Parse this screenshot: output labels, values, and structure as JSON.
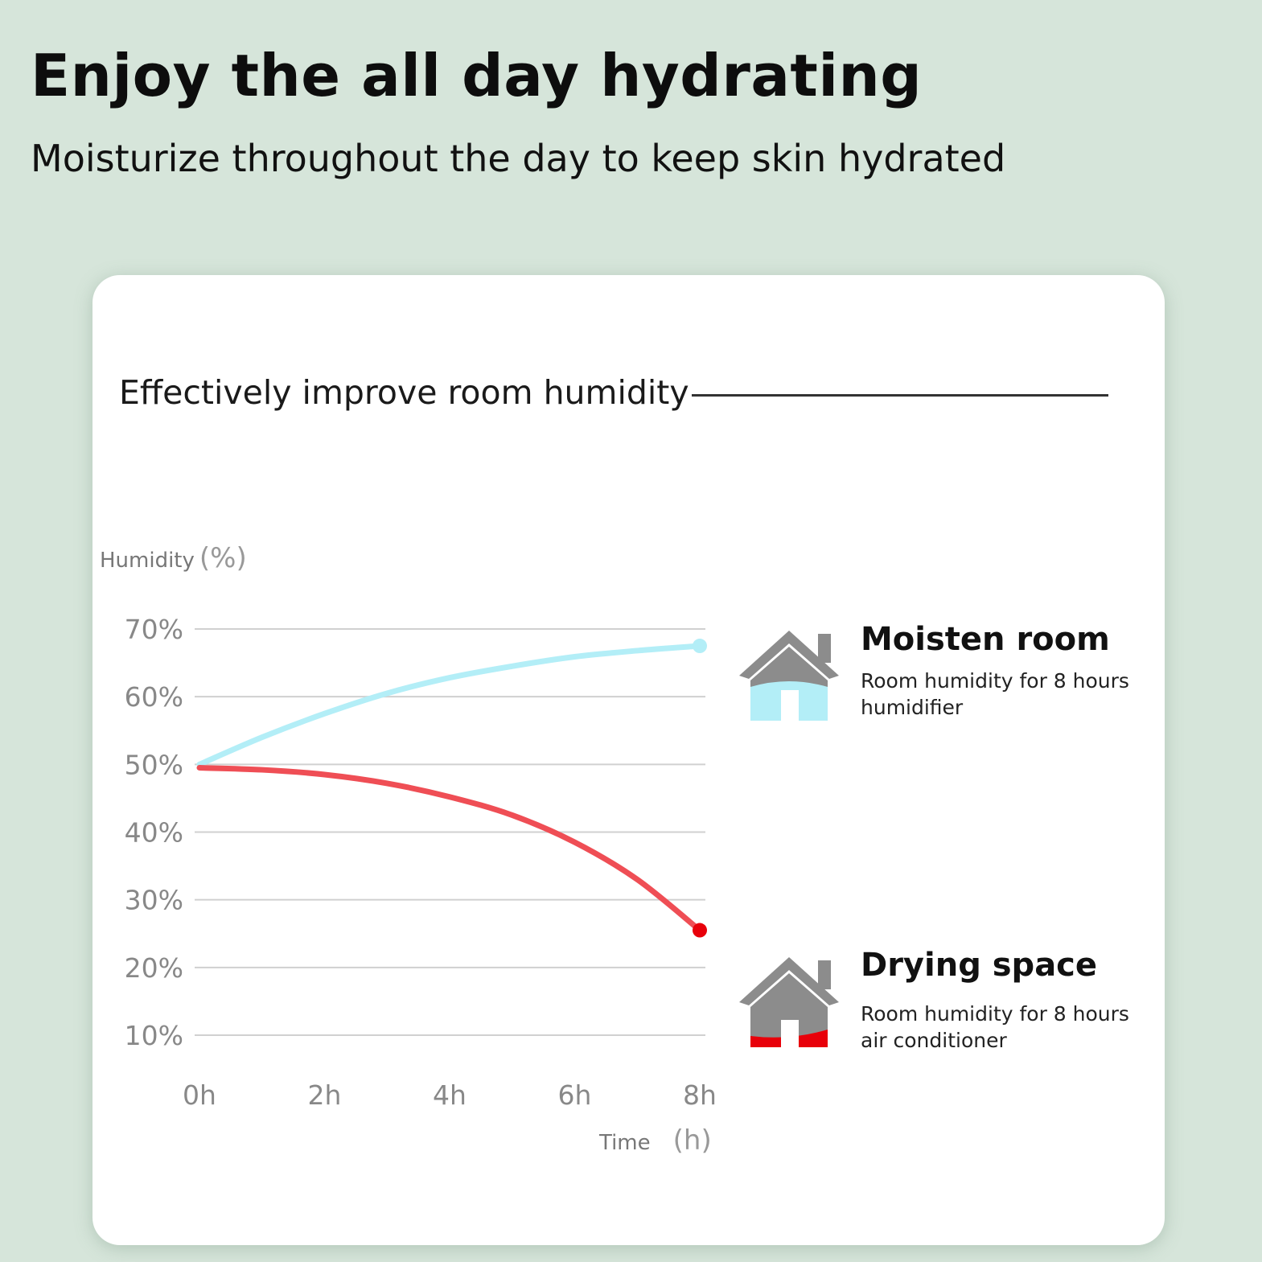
{
  "header": {
    "title": "Enjoy the all day hydrating",
    "subtitle": "Moisturize throughout the day to keep skin hydrated"
  },
  "card": {
    "title": "Effectively improve room humidity"
  },
  "colors": {
    "background": "#d6e5da",
    "humidifier_series": "#b3eef7",
    "ac_series": "#ef4e55",
    "ac_endpoint": "#e8000a",
    "house_gray": "#8c8c8c"
  },
  "chart_data": {
    "type": "line",
    "ylabel": "Humidity",
    "ylabel_unit": "(%)",
    "xlabel": "Time",
    "xlabel_unit": "(h)",
    "y_ticks": [
      {
        "value": 70,
        "label": "70%"
      },
      {
        "value": 60,
        "label": "60%"
      },
      {
        "value": 50,
        "label": "50%"
      },
      {
        "value": 40,
        "label": "40%"
      },
      {
        "value": 30,
        "label": "30%"
      },
      {
        "value": 20,
        "label": "20%"
      },
      {
        "value": 10,
        "label": "10%"
      }
    ],
    "x_ticks": [
      {
        "value": 0,
        "label": "0h"
      },
      {
        "value": 2,
        "label": "2h"
      },
      {
        "value": 4,
        "label": "4h"
      },
      {
        "value": 6,
        "label": "6h"
      },
      {
        "value": 8,
        "label": "8h"
      }
    ],
    "xlim": [
      0,
      8
    ],
    "ylim": [
      10,
      70
    ],
    "grid": true,
    "series": [
      {
        "x": [
          0,
          1,
          2,
          3,
          4,
          5,
          6,
          7,
          8
        ],
        "values": [
          50,
          54,
          57.5,
          60.5,
          62.8,
          64.5,
          65.9,
          66.8,
          67.5
        ],
        "color": "#b3eef7",
        "end_marker": true
      },
      {
        "x": [
          0,
          1,
          2,
          3,
          4,
          5,
          6,
          7,
          8
        ],
        "values": [
          49.5,
          49.2,
          48.5,
          47.2,
          45.2,
          42.5,
          38.5,
          33,
          25.5
        ],
        "color": "#ef4e55",
        "end_marker": true
      }
    ]
  },
  "legend": [
    {
      "name": "Moisten room",
      "description": "Room humidity for 8 hours humidifier",
      "icon": "house-humid-icon"
    },
    {
      "name": "Drying space",
      "description": "Room humidity for 8 hours air conditioner",
      "icon": "house-dry-icon"
    }
  ]
}
